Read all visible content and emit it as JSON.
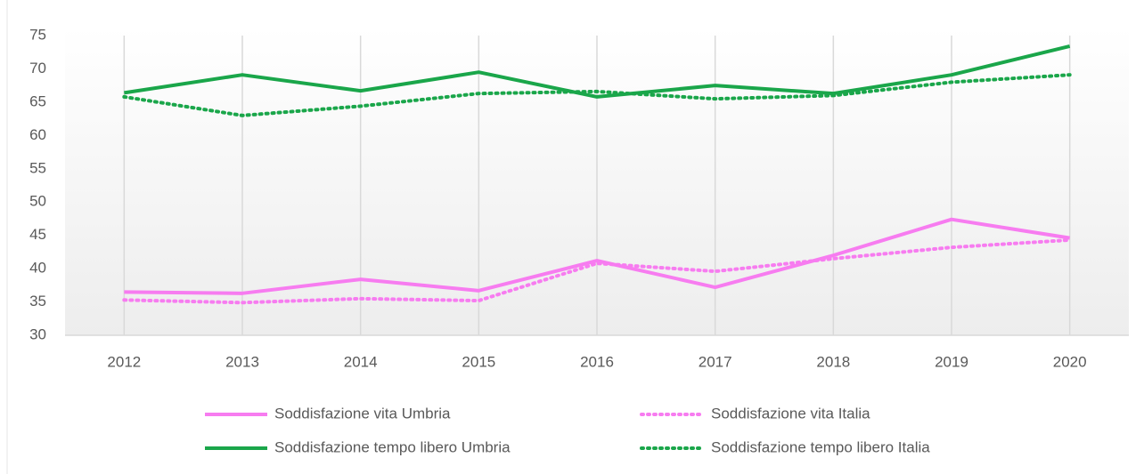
{
  "chart_data": {
    "type": "line",
    "categories": [
      "2012",
      "2013",
      "2014",
      "2015",
      "2016",
      "2017",
      "2018",
      "2019",
      "2020"
    ],
    "series": [
      {
        "name": "Soddisfazione vita Umbria",
        "color": "#f77cf0",
        "line_style": "solid",
        "values": [
          36.5,
          36.3,
          38.4,
          36.7,
          41.2,
          37.2,
          42.0,
          47.4,
          44.6
        ]
      },
      {
        "name": "Soddisfazione vita Italia",
        "color": "#f77cf0",
        "line_style": "dotted",
        "values": [
          35.3,
          34.9,
          35.5,
          35.2,
          40.8,
          39.6,
          41.5,
          43.2,
          44.3
        ]
      },
      {
        "name": "Soddisfazione tempo libero Umbria",
        "color": "#1aa64a",
        "line_style": "solid",
        "values": [
          66.4,
          69.1,
          66.7,
          69.5,
          65.8,
          67.5,
          66.3,
          69.1,
          73.4
        ]
      },
      {
        "name": "Soddisfazione tempo libero Italia",
        "color": "#1aa64a",
        "line_style": "dotted",
        "values": [
          65.8,
          63.0,
          64.4,
          66.3,
          66.6,
          65.5,
          66.0,
          68.0,
          69.1
        ]
      }
    ],
    "ylim": [
      30,
      75
    ],
    "yticks": [
      30,
      35,
      40,
      45,
      50,
      55,
      60,
      65,
      70,
      75
    ],
    "grid": "vertical"
  }
}
